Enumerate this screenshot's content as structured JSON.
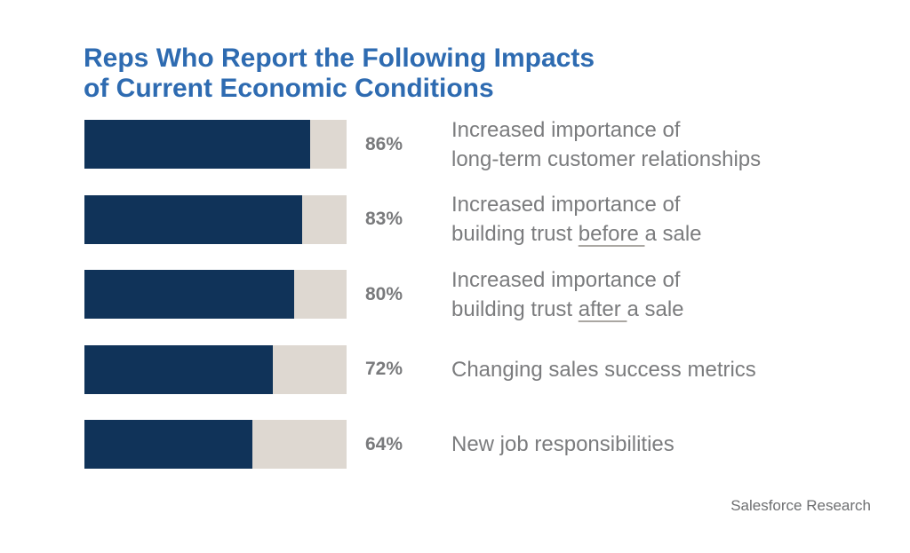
{
  "title": {
    "line1": "Reps Who Report the Following Impacts",
    "line2": "of Current Economic Conditions"
  },
  "footer": {
    "source": "Salesforce Research"
  },
  "colors": {
    "title_blue": "#2e6bb1",
    "bar_fill_navy": "#103359",
    "bar_track_beige": "#ded8d1",
    "text_gray": "#7b7c7e",
    "percent_gray": "#797a7c",
    "underline_gray": "#aaa7a2"
  },
  "chart_data": {
    "type": "bar",
    "orientation": "horizontal",
    "title": "Reps Who Report the Following Impacts of Current Economic Conditions",
    "xlim": [
      0,
      100
    ],
    "unit": "%",
    "grid": false,
    "legend": false,
    "categories": [
      "Increased importance of long-term customer relationships",
      "Increased importance of building trust before a sale",
      "Increased importance of building trust after a sale",
      "Changing sales success metrics",
      "New job responsibilities"
    ],
    "values": [
      86,
      83,
      80,
      72,
      64
    ],
    "source": "Salesforce Research",
    "rows": [
      {
        "value": 86,
        "percent_label": "86%",
        "label_segments": [
          [
            {
              "t": "Increased importance of"
            }
          ],
          [
            {
              "t": "long-term customer relationships"
            }
          ]
        ]
      },
      {
        "value": 83,
        "percent_label": "83%",
        "label_segments": [
          [
            {
              "t": "Increased importance of"
            }
          ],
          [
            {
              "t": "building trust "
            },
            {
              "t": "before ",
              "u": true
            },
            {
              "t": "a sale"
            }
          ]
        ]
      },
      {
        "value": 80,
        "percent_label": "80%",
        "label_segments": [
          [
            {
              "t": "Increased importance of"
            }
          ],
          [
            {
              "t": "building trust "
            },
            {
              "t": "after ",
              "u": true
            },
            {
              "t": "a sale"
            }
          ]
        ]
      },
      {
        "value": 72,
        "percent_label": "72%",
        "label_segments": [
          [
            {
              "t": "Changing sales success metrics"
            }
          ]
        ]
      },
      {
        "value": 64,
        "percent_label": "64%",
        "label_segments": [
          [
            {
              "t": "New job responsibilities"
            }
          ]
        ]
      }
    ]
  }
}
